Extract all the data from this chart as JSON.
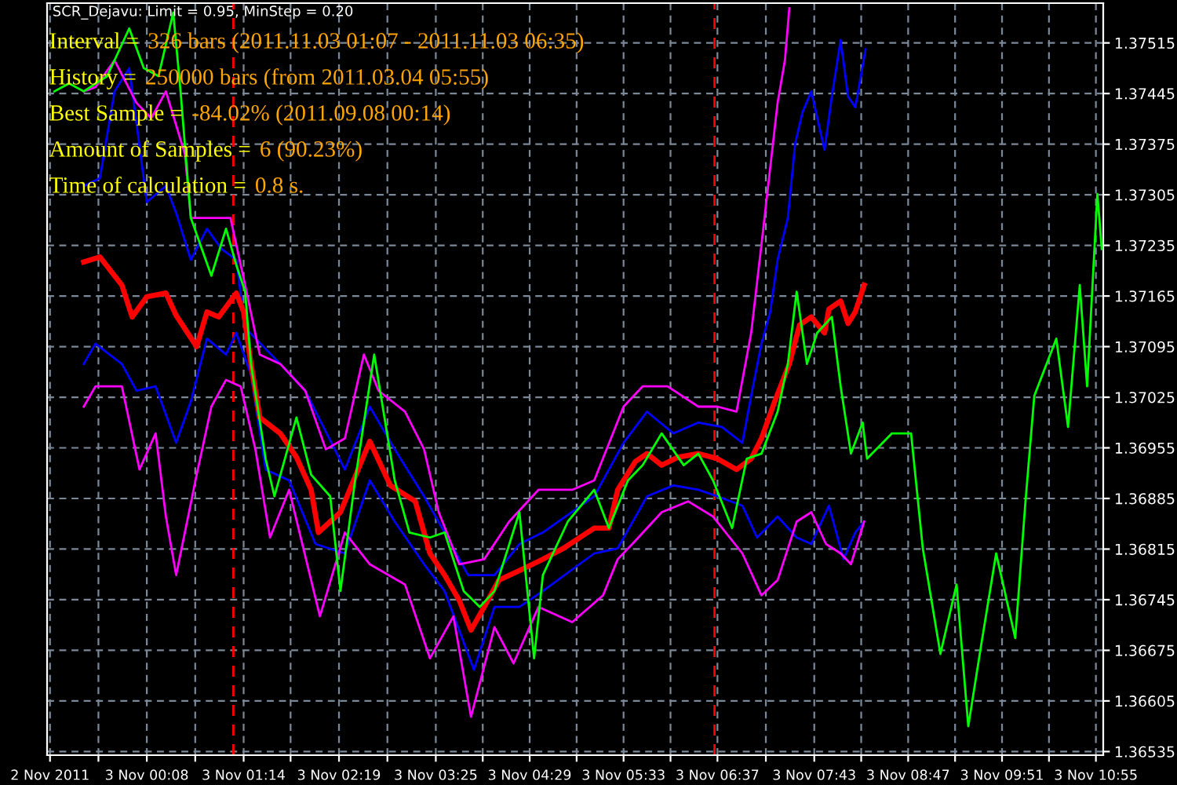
{
  "chart_data": {
    "type": "line",
    "title": "SCR_Dejavu: Limit = 0.95, MinStep = 0.20",
    "annotations": [
      "Interval =",
      "326 bars (2011.11.03 01:07 - 2011.11.03 06:35)",
      "History =",
      "250000 bars (from 2011.03.04 05:55)",
      "Best Sample =",
      "-84.02% (2011.09.08 00:14)",
      "Amount of Samples =",
      "6 (90.23%)",
      "Time of calculation =",
      "0.8 s."
    ],
    "series": [
      {
        "color": "#00ff00",
        "x": [
          "2011-11-02T23:05",
          "2011-11-02T23:15",
          "2011-11-02T23:25",
          "2011-11-02T23:41",
          "2011-11-02T23:56",
          "2011-11-03T00:06",
          "2011-11-03T00:16",
          "2011-11-03T00:26",
          "2011-11-03T00:31",
          "2011-11-03T00:38",
          "2011-11-03T00:52",
          "2011-11-03T01:02",
          "2011-11-03T01:09",
          "2011-11-03T01:15",
          "2011-11-03T01:19",
          "2011-11-03T01:29",
          "2011-11-03T01:35",
          "2011-11-03T01:50",
          "2011-11-03T02:00",
          "2011-11-03T02:13",
          "2011-11-03T02:20",
          "2011-11-03T02:30",
          "2011-11-03T02:43",
          "2011-11-03T02:57",
          "2011-11-03T03:07",
          "2011-11-03T03:21",
          "2011-11-03T03:31",
          "2011-11-03T03:44",
          "2011-11-03T03:55",
          "2011-11-03T04:05",
          "2011-11-03T04:22",
          "2011-11-03T04:32",
          "2011-11-03T04:38",
          "2011-11-03T04:55",
          "2011-11-03T05:13",
          "2011-11-03T05:23",
          "2011-11-03T05:36",
          "2011-11-03T05:46",
          "2011-11-03T05:59",
          "2011-11-03T06:14",
          "2011-11-03T06:24",
          "2011-11-03T06:34",
          "2011-11-03T06:47",
          "2011-11-03T06:57",
          "2011-11-03T07:07",
          "2011-11-03T07:18",
          "2011-11-03T07:25",
          "2011-11-03T07:31",
          "2011-11-03T07:38",
          "2011-11-03T07:45",
          "2011-11-03T07:55",
          "2011-11-03T08:01",
          "2011-11-03T08:08",
          "2011-11-03T08:16",
          "2011-11-03T08:19",
          "2011-11-03T08:36",
          "2011-11-03T08:49",
          "2011-11-03T08:57",
          "2011-11-03T09:09",
          "2011-11-03T09:20",
          "2011-11-03T09:28",
          "2011-11-03T09:37",
          "2011-11-03T09:47",
          "2011-11-03T10:00",
          "2011-11-03T10:07",
          "2011-11-03T10:13",
          "2011-11-03T10:28",
          "2011-11-03T10:36",
          "2011-11-03T10:44",
          "2011-11-03T10:49",
          "2011-11-03T10:56",
          "2011-11-03T10:59"
        ],
        "values": [
          1.37448,
          1.37459,
          1.37448,
          1.37469,
          1.37535,
          1.3748,
          1.37469,
          1.37557,
          1.37448,
          1.37273,
          1.37193,
          1.37258,
          1.37208,
          1.37171,
          1.37071,
          1.3694,
          1.36888,
          1.36997,
          1.36918,
          1.36888,
          1.36757,
          1.3691,
          1.37084,
          1.3691,
          1.36838,
          1.36831,
          1.36838,
          1.36757,
          1.36735,
          1.36757,
          1.36866,
          1.36664,
          1.36779,
          1.36853,
          1.36897,
          1.36844,
          1.3691,
          1.36931,
          1.36975,
          1.36931,
          1.36947,
          1.3691,
          1.36844,
          1.3694,
          1.36947,
          1.37005,
          1.37071,
          1.37171,
          1.37071,
          1.37114,
          1.37136,
          1.3704,
          1.36947,
          1.3699,
          1.3694,
          1.36975,
          1.36975,
          1.36816,
          1.3667,
          1.36766,
          1.3657,
          1.36685,
          1.36809,
          1.36692,
          1.36881,
          1.37027,
          1.37106,
          1.36984,
          1.3718,
          1.3704,
          1.37306,
          1.3723
        ]
      },
      {
        "color": "#0000ff",
        "x": [
          "2011-11-02T23:25",
          "2011-11-02T23:36",
          "2011-11-02T23:46",
          "2011-11-02T23:56",
          "2011-11-03T00:08",
          "2011-11-03T00:21",
          "2011-11-03T00:28",
          "2011-11-03T00:38",
          "2011-11-03T00:49",
          "2011-11-03T00:59",
          "2011-11-03T01:09",
          "2011-11-03T01:15",
          "2011-11-03T01:39",
          "2011-11-03T01:56",
          "2011-11-03T02:23",
          "2011-11-03T02:40",
          "2011-11-03T02:57",
          "2011-11-03T03:17",
          "2011-11-03T03:31",
          "2011-11-03T03:47",
          "2011-11-03T04:05",
          "2011-11-03T04:22",
          "2011-11-03T04:38",
          "2011-11-03T05:13",
          "2011-11-03T05:33",
          "2011-11-03T05:49",
          "2011-11-03T06:07",
          "2011-11-03T06:24",
          "2011-11-03T06:40",
          "2011-11-03T06:54",
          "2011-11-03T07:00",
          "2011-11-03T07:07",
          "2011-11-03T07:13",
          "2011-11-03T07:18",
          "2011-11-03T07:25",
          "2011-11-03T07:30",
          "2011-11-03T07:35",
          "2011-11-03T07:41",
          "2011-11-03T07:50",
          "2011-11-03T07:55",
          "2011-11-03T08:01",
          "2011-11-03T08:06",
          "2011-11-03T08:11",
          "2011-11-03T08:18"
        ],
        "values": [
          1.37317,
          1.37328,
          1.37448,
          1.3748,
          1.37295,
          1.37317,
          1.3728,
          1.37215,
          1.37258,
          1.3723,
          1.37215,
          1.37121,
          1.37071,
          1.37034,
          1.36925,
          1.37012,
          1.36953,
          1.36888,
          1.36838,
          1.36779,
          1.36779,
          1.36822,
          1.36838,
          1.36888,
          1.36962,
          1.37005,
          1.36975,
          1.3699,
          1.36984,
          1.36962,
          1.37027,
          1.37099,
          1.37143,
          1.37215,
          1.37273,
          1.37376,
          1.37419,
          1.37448,
          1.37367,
          1.37441,
          1.37519,
          1.37441,
          1.37426,
          1.37506
        ]
      },
      {
        "color": "#0000ff",
        "x": [
          "2011-11-02T23:25",
          "2011-11-02T23:33",
          "2011-11-02T23:51",
          "2011-11-03T00:01",
          "2011-11-03T00:14",
          "2011-11-03T00:28",
          "2011-11-03T00:38",
          "2011-11-03T00:49",
          "2011-11-03T01:02",
          "2011-11-03T01:09",
          "2011-11-03T01:19",
          "2011-11-03T01:29",
          "2011-11-03T01:45",
          "2011-11-03T02:03",
          "2011-11-03T02:23",
          "2011-11-03T02:40",
          "2011-11-03T02:57",
          "2011-11-03T03:17",
          "2011-11-03T03:31",
          "2011-11-03T03:51",
          "2011-11-03T04:05",
          "2011-11-03T04:22",
          "2011-11-03T04:38",
          "2011-11-03T05:13",
          "2011-11-03T05:29",
          "2011-11-03T05:49",
          "2011-11-03T06:07",
          "2011-11-03T06:24",
          "2011-11-03T06:37",
          "2011-11-03T06:54",
          "2011-11-03T07:04",
          "2011-11-03T07:18",
          "2011-11-03T07:31",
          "2011-11-03T07:41",
          "2011-11-03T07:53",
          "2011-11-03T08:03",
          "2011-11-03T08:11",
          "2011-11-03T08:17"
        ],
        "values": [
          1.37071,
          1.37099,
          1.37071,
          1.37034,
          1.3704,
          1.36962,
          1.37019,
          1.37106,
          1.37084,
          1.37114,
          1.37056,
          1.36925,
          1.3691,
          1.36822,
          1.36809,
          1.3691,
          1.36853,
          1.36794,
          1.36757,
          1.36648,
          1.36735,
          1.36735,
          1.36757,
          1.36809,
          1.36816,
          1.36888,
          1.36903,
          1.36897,
          1.36888,
          1.36875,
          1.36831,
          1.3686,
          1.36831,
          1.36822,
          1.36875,
          1.36801,
          1.36838,
          1.36853
        ]
      },
      {
        "color": "#ff00ff",
        "x": [
          "2011-11-02T23:25",
          "2011-11-02T23:33",
          "2011-11-02T23:46",
          "2011-11-03T00:01",
          "2011-11-03T00:11",
          "2011-11-03T00:21",
          "2011-11-03T00:34",
          "2011-11-03T00:38",
          "2011-11-03T01:05",
          "2011-11-03T01:15",
          "2011-11-03T01:25",
          "2011-11-03T01:39",
          "2011-11-03T01:56",
          "2011-11-03T02:10",
          "2011-11-03T02:23",
          "2011-11-03T02:36",
          "2011-11-03T02:46",
          "2011-11-03T03:04",
          "2011-11-03T03:17",
          "2011-11-03T03:27",
          "2011-11-03T03:41",
          "2011-11-03T03:58",
          "2011-11-03T04:15",
          "2011-11-03T04:35",
          "2011-11-03T04:58",
          "2011-11-03T05:13",
          "2011-11-03T05:33",
          "2011-11-03T05:46",
          "2011-11-03T06:03",
          "2011-11-03T06:24",
          "2011-11-03T06:37",
          "2011-11-03T06:50",
          "2011-11-03T07:00",
          "2011-11-03T07:07",
          "2011-11-03T07:18",
          "2011-11-03T07:23",
          "2011-11-03T07:26"
        ],
        "values": [
          1.37448,
          1.37454,
          1.37491,
          1.37432,
          1.37411,
          1.37448,
          1.37361,
          1.37273,
          1.37273,
          1.3718,
          1.37084,
          1.37071,
          1.37034,
          1.36953,
          1.36968,
          1.37084,
          1.37034,
          1.37005,
          1.36953,
          1.36866,
          1.36794,
          1.36801,
          1.36853,
          1.36897,
          1.36897,
          1.3691,
          1.37012,
          1.3704,
          1.3704,
          1.37012,
          1.37012,
          1.37005,
          1.37114,
          1.37236,
          1.37432,
          1.37491,
          1.37563
        ]
      },
      {
        "color": "#ff00ff",
        "x": [
          "2011-11-02T23:25",
          "2011-11-02T23:33",
          "2011-11-02T23:51",
          "2011-11-03T00:03",
          "2011-11-03T00:14",
          "2011-11-03T00:21",
          "2011-11-03T00:28",
          "2011-11-03T00:42",
          "2011-11-03T00:52",
          "2011-11-03T01:02",
          "2011-11-03T01:12",
          "2011-11-03T01:22",
          "2011-11-03T01:32",
          "2011-11-03T01:45",
          "2011-11-03T02:06",
          "2011-11-03T02:23",
          "2011-11-03T02:40",
          "2011-11-03T03:04",
          "2011-11-03T03:21",
          "2011-11-03T03:37",
          "2011-11-03T03:49",
          "2011-11-03T04:05",
          "2011-11-03T04:18",
          "2011-11-03T04:35",
          "2011-11-03T04:58",
          "2011-11-03T05:19",
          "2011-11-03T05:29",
          "2011-11-03T05:39",
          "2011-11-03T05:59",
          "2011-11-03T06:17",
          "2011-11-03T06:34",
          "2011-11-03T06:54",
          "2011-11-03T07:07",
          "2011-11-03T07:18",
          "2011-11-03T07:31",
          "2011-11-03T07:41",
          "2011-11-03T07:51",
          "2011-11-03T08:01",
          "2011-11-03T08:08",
          "2011-11-03T08:17"
        ],
        "values": [
          1.37012,
          1.3704,
          1.3704,
          1.36925,
          1.36975,
          1.3686,
          1.36779,
          1.36918,
          1.37012,
          1.37049,
          1.3704,
          1.36953,
          1.36831,
          1.36897,
          1.36722,
          1.36838,
          1.36794,
          1.36766,
          1.36664,
          1.36722,
          1.36583,
          1.36707,
          1.36657,
          1.36735,
          1.36714,
          1.36751,
          1.36801,
          1.36822,
          1.36866,
          1.36881,
          1.3686,
          1.36809,
          1.36751,
          1.36772,
          1.36853,
          1.36866,
          1.36822,
          1.36809,
          1.36794,
          1.36853
        ]
      },
      {
        "color": "#ff0000",
        "x": [
          "2011-11-02T23:25",
          "2011-11-02T23:36",
          "2011-11-02T23:51",
          "2011-11-02T23:58",
          "2011-11-03T00:08",
          "2011-11-03T00:21",
          "2011-11-03T00:28",
          "2011-11-03T00:42",
          "2011-11-03T00:49",
          "2011-11-03T00:57",
          "2011-11-03T01:09",
          "2011-11-03T01:14",
          "2011-11-03T01:19",
          "2011-11-03T01:25",
          "2011-11-03T01:39",
          "2011-11-03T01:50",
          "2011-11-03T02:00",
          "2011-11-03T02:05",
          "2011-11-03T02:20",
          "2011-11-03T02:40",
          "2011-11-03T02:54",
          "2011-11-03T03:11",
          "2011-11-03T03:21",
          "2011-11-03T03:31",
          "2011-11-03T03:41",
          "2011-11-03T03:49",
          "2011-11-03T03:58",
          "2011-11-03T04:08",
          "2011-11-03T04:25",
          "2011-11-03T04:38",
          "2011-11-03T04:52",
          "2011-11-03T05:13",
          "2011-11-03T05:23",
          "2011-11-03T05:29",
          "2011-11-03T05:41",
          "2011-11-03T05:49",
          "2011-11-03T05:59",
          "2011-11-03T06:10",
          "2011-11-03T06:24",
          "2011-11-03T06:37",
          "2011-11-03T06:50",
          "2011-11-03T07:00",
          "2011-11-03T07:07",
          "2011-11-03T07:16",
          "2011-11-03T07:26",
          "2011-11-03T07:33",
          "2011-11-03T07:41",
          "2011-11-03T07:50",
          "2011-11-03T07:53",
          "2011-11-03T08:01",
          "2011-11-03T08:06",
          "2011-11-03T08:11",
          "2011-11-03T08:17"
        ],
        "values": [
          1.37212,
          1.37219,
          1.3718,
          1.37136,
          1.37164,
          1.37169,
          1.37138,
          1.37095,
          1.37143,
          1.37136,
          1.37169,
          1.37143,
          1.37071,
          1.36997,
          1.36975,
          1.36942,
          1.36897,
          1.36838,
          1.36866,
          1.36964,
          1.36903,
          1.36881,
          1.36809,
          1.36779,
          1.36744,
          1.36703,
          1.36735,
          1.36772,
          1.36788,
          1.36801,
          1.36816,
          1.36844,
          1.36844,
          1.36897,
          1.36936,
          1.36947,
          1.36931,
          1.36942,
          1.36947,
          1.3694,
          1.36925,
          1.3694,
          1.36968,
          1.37019,
          1.37071,
          1.37125,
          1.37136,
          1.37114,
          1.37147,
          1.37158,
          1.37127,
          1.37143,
          1.3718
        ]
      }
    ],
    "xlim": [
      "2011-11-02T23:00",
      "2011-11-03T11:00"
    ],
    "xticks": [
      {
        "value": "2011-11-02T23:02",
        "label": "2 Nov 2011"
      },
      {
        "value": "2011-11-02T23:35",
        "label": null
      },
      {
        "value": "2011-11-03T00:08",
        "label": "3 Nov 00:08"
      },
      {
        "value": "2011-11-03T00:41",
        "label": null
      },
      {
        "value": "2011-11-03T01:14",
        "label": "3 Nov 01:14"
      },
      {
        "value": "2011-11-03T01:46",
        "label": null
      },
      {
        "value": "2011-11-03T02:19",
        "label": "3 Nov 02:19"
      },
      {
        "value": "2011-11-03T02:52",
        "label": null
      },
      {
        "value": "2011-11-03T03:25",
        "label": "3 Nov 03:25"
      },
      {
        "value": "2011-11-03T03:57",
        "label": null
      },
      {
        "value": "2011-11-03T04:29",
        "label": "3 Nov 04:29"
      },
      {
        "value": "2011-11-03T05:01",
        "label": null
      },
      {
        "value": "2011-11-03T05:33",
        "label": "3 Nov 05:33"
      },
      {
        "value": "2011-11-03T06:05",
        "label": null
      },
      {
        "value": "2011-11-03T06:37",
        "label": "3 Nov 06:37"
      },
      {
        "value": "2011-11-03T07:10",
        "label": null
      },
      {
        "value": "2011-11-03T07:43",
        "label": "3 Nov 07:43"
      },
      {
        "value": "2011-11-03T08:15",
        "label": null
      },
      {
        "value": "2011-11-03T08:47",
        "label": "3 Nov 08:47"
      },
      {
        "value": "2011-11-03T09:19",
        "label": null
      },
      {
        "value": "2011-11-03T09:51",
        "label": "3 Nov 09:51"
      },
      {
        "value": "2011-11-03T10:23",
        "label": null
      },
      {
        "value": "2011-11-03T10:55",
        "label": "3 Nov 10:55"
      }
    ],
    "ylim": [
      1.3653,
      1.3757
    ],
    "yticks": [
      1.36535,
      1.36605,
      1.36675,
      1.36745,
      1.36815,
      1.36885,
      1.36955,
      1.37025,
      1.37095,
      1.37165,
      1.37235,
      1.37305,
      1.37375,
      1.37445,
      1.37515
    ],
    "ref_lines": [
      {
        "axis": "x",
        "value": "2011-11-03T01:07",
        "color": "#ff0000",
        "line_style": "dashed"
      },
      {
        "axis": "x",
        "value": "2011-11-03T06:35",
        "color": "#ff0000",
        "line_style": "dashed"
      }
    ],
    "grid": true,
    "marker": "none",
    "line_style": "solid"
  }
}
